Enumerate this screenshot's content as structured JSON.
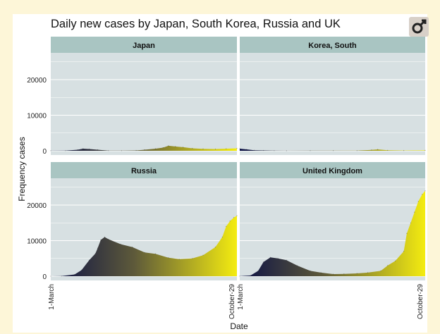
{
  "page": {
    "title": "Daily new cases by Japan, South Korea, Russia and UK"
  },
  "icons": {
    "logo": "venus-mars-logo-icon"
  },
  "colors": {
    "panel_bg": "#d7e0e2",
    "strip_bg": "#a9c5c2",
    "grad_start": "#0a1045",
    "grad_mid": "#5e5a3a",
    "grad_end": "#f4ec10"
  },
  "chart_data": {
    "type": "area",
    "xlabel": "Date",
    "ylabel": "Frequency cases",
    "x_range": [
      "1-March",
      "October-29"
    ],
    "x_ticks": [
      "1-March",
      "October-29"
    ],
    "y_ticks": [
      0,
      10000,
      20000
    ],
    "ylim": [
      0,
      27000
    ],
    "grid": true,
    "facets": [
      {
        "name": "Japan",
        "x": [
          "03-01",
          "03-20",
          "04-05",
          "04-12",
          "04-20",
          "05-01",
          "05-15",
          "06-01",
          "06-20",
          "07-01",
          "07-15",
          "07-25",
          "08-01",
          "08-10",
          "08-20",
          "09-01",
          "09-15",
          "10-01",
          "10-15",
          "10-29"
        ],
        "y": [
          15,
          40,
          300,
          600,
          500,
          300,
          60,
          40,
          100,
          300,
          600,
          900,
          1400,
          1200,
          1000,
          700,
          550,
          500,
          600,
          700
        ]
      },
      {
        "name": "Korea, South",
        "x": [
          "03-01",
          "03-10",
          "03-20",
          "04-01",
          "04-15",
          "05-01",
          "06-01",
          "07-01",
          "08-01",
          "08-20",
          "08-28",
          "09-10",
          "10-01",
          "10-29"
        ],
        "y": [
          600,
          400,
          150,
          90,
          30,
          10,
          40,
          50,
          50,
          250,
          400,
          130,
          80,
          110
        ]
      },
      {
        "name": "Russia",
        "x": [
          "03-01",
          "03-15",
          "04-01",
          "04-10",
          "04-20",
          "04-28",
          "05-01",
          "05-05",
          "05-10",
          "05-15",
          "05-31",
          "06-15",
          "07-01",
          "07-15",
          "08-01",
          "08-15",
          "09-01",
          "09-15",
          "10-01",
          "10-10",
          "10-15",
          "10-20",
          "10-25",
          "10-29"
        ],
        "y": [
          0,
          30,
          500,
          1700,
          4500,
          6400,
          7900,
          10200,
          11000,
          10400,
          9000,
          8200,
          6700,
          6300,
          5200,
          4800,
          5000,
          5900,
          8200,
          11000,
          14000,
          15500,
          16500,
          17000
        ]
      },
      {
        "name": "United Kingdom",
        "x": [
          "03-01",
          "03-15",
          "03-25",
          "04-01",
          "04-10",
          "04-20",
          "05-01",
          "05-15",
          "06-01",
          "06-15",
          "07-01",
          "07-15",
          "08-01",
          "08-15",
          "09-01",
          "09-10",
          "09-20",
          "10-01",
          "10-05",
          "10-10",
          "10-15",
          "10-20",
          "10-25",
          "10-29"
        ],
        "y": [
          20,
          200,
          1500,
          4000,
          5300,
          5000,
          4500,
          3000,
          1500,
          1000,
          600,
          650,
          800,
          1000,
          1500,
          3000,
          4300,
          7000,
          12000,
          15000,
          18000,
          21000,
          23000,
          24000
        ]
      }
    ]
  }
}
